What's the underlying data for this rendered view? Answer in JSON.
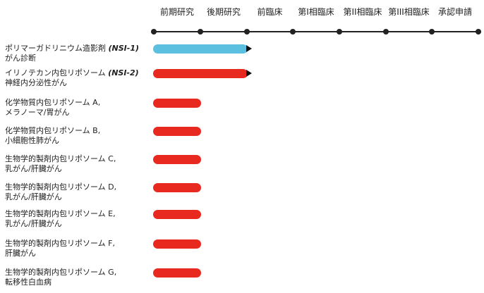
{
  "colors": {
    "red": "#e8291f",
    "blue": "#5bbfe0",
    "axis": "#222222"
  },
  "stages": [
    "前期研究",
    "後期研究",
    "前臨床",
    "第I相臨床",
    "第II相臨床",
    "第III相臨床",
    "承認申請"
  ],
  "rows": [
    {
      "line1": "ポリマーガドリニウム造影剤",
      "code": "(NSI-1)",
      "line2": "がん診断",
      "color": "blue",
      "progress_stages": 2,
      "arrow": true
    },
    {
      "line1": "イリノテカン内包リポソーム",
      "code": "(NSI-2)",
      "line2": "神経内分泌性がん",
      "color": "red",
      "progress_stages": 2,
      "arrow": true
    },
    {
      "line1": "化学物質内包リポソーム A,",
      "code": "",
      "line2": "メラノーマ/胃がん",
      "color": "red",
      "progress_stages": 1,
      "arrow": false
    },
    {
      "line1": "化学物質内包リポソーム B,",
      "code": "",
      "line2": "小細胞性肺がん",
      "color": "red",
      "progress_stages": 1,
      "arrow": false
    },
    {
      "line1": "生物学的製剤内包リポソーム C,",
      "code": "",
      "line2": "乳がん/肝臓がん",
      "color": "red",
      "progress_stages": 1,
      "arrow": false
    },
    {
      "line1": "生物学的製剤内包リポソーム D,",
      "code": "",
      "line2": "乳がん/肝臓がん",
      "color": "red",
      "progress_stages": 1,
      "arrow": false
    },
    {
      "line1": "生物学的製剤内包リポソーム E,",
      "code": "",
      "line2": "乳がん/肝臓がん",
      "color": "red",
      "progress_stages": 1,
      "arrow": false
    },
    {
      "line1": "生物学的製剤内包リポソーム F,",
      "code": "",
      "line2": "肝臓がん",
      "color": "red",
      "progress_stages": 1,
      "arrow": false
    },
    {
      "line1": "生物学的製剤内包リポソーム G,",
      "code": "",
      "line2": "転移性白血病",
      "color": "red",
      "progress_stages": 1,
      "arrow": false
    }
  ]
}
